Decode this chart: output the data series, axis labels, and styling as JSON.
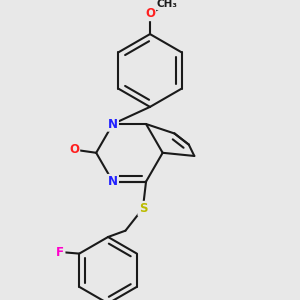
{
  "background_color": "#e8e8e8",
  "bond_color": "#1a1a1a",
  "atom_colors": {
    "N": "#2020ff",
    "O": "#ff2020",
    "S": "#bbbb00",
    "F": "#ff00cc",
    "C": "#1a1a1a"
  },
  "figsize": [
    3.0,
    3.0
  ],
  "dpi": 100
}
